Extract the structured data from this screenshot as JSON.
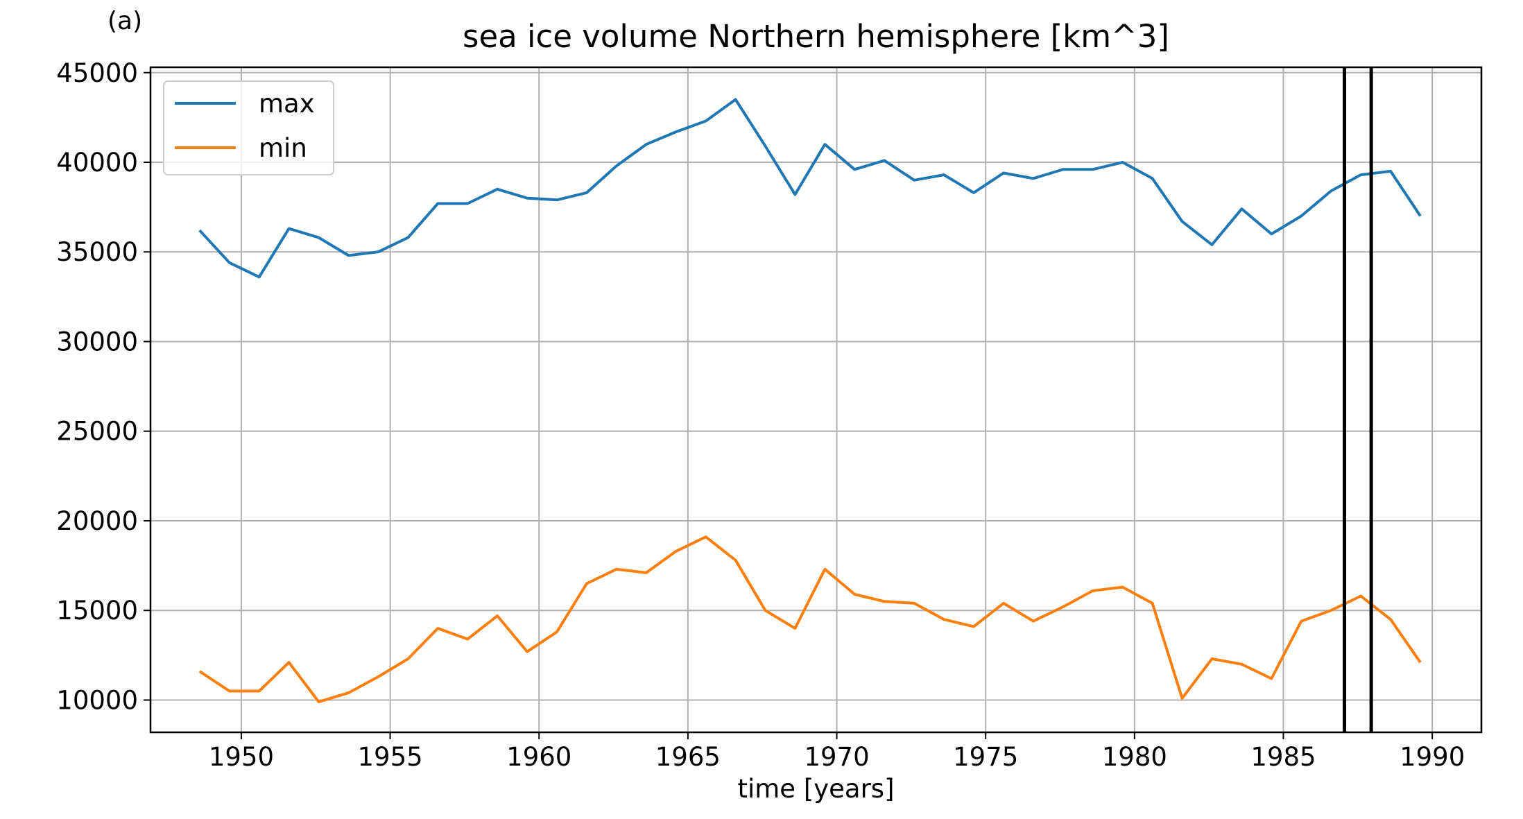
{
  "panel_label": "(a)",
  "chart_data": {
    "type": "line",
    "title": "sea ice volume Northern hemisphere [km^3]",
    "xlabel": "time [years]",
    "ylabel": "",
    "xlim": [
      1946.95,
      1991.65
    ],
    "ylim": [
      8200,
      45300
    ],
    "xticks": [
      1950,
      1955,
      1960,
      1965,
      1970,
      1975,
      1980,
      1985,
      1990
    ],
    "yticks": [
      10000,
      15000,
      20000,
      25000,
      30000,
      35000,
      40000,
      45000
    ],
    "grid": true,
    "legend_position": "top-left",
    "x": [
      1948.6,
      1949.6,
      1950.6,
      1951.6,
      1952.6,
      1953.6,
      1954.6,
      1955.6,
      1956.6,
      1957.6,
      1958.6,
      1959.6,
      1960.6,
      1961.6,
      1962.6,
      1963.6,
      1964.6,
      1965.6,
      1966.6,
      1967.6,
      1968.6,
      1969.6,
      1970.6,
      1971.6,
      1972.6,
      1973.6,
      1974.6,
      1975.6,
      1976.6,
      1977.6,
      1978.6,
      1979.6,
      1980.6,
      1981.6,
      1982.6,
      1983.6,
      1984.6,
      1985.6,
      1986.6,
      1987.6,
      1988.6,
      1989.6
    ],
    "series": [
      {
        "name": "max",
        "color": "#1f77b4",
        "values": [
          36200,
          34400,
          33600,
          36300,
          35800,
          34800,
          35000,
          35800,
          37700,
          37700,
          38500,
          38000,
          37900,
          38300,
          39800,
          41000,
          41700,
          42300,
          43500,
          40900,
          38200,
          41000,
          39600,
          40100,
          39000,
          39300,
          38300,
          39400,
          39100,
          39600,
          39600,
          40000,
          39100,
          36700,
          35400,
          37400,
          36000,
          37000,
          38400,
          39300,
          39500,
          37000
        ]
      },
      {
        "name": "min",
        "color": "#ff7f0e",
        "values": [
          11600,
          10500,
          10500,
          12100,
          9900,
          10400,
          11300,
          12300,
          14000,
          13400,
          14700,
          12700,
          13800,
          16500,
          17300,
          17100,
          18300,
          19100,
          17800,
          15000,
          14000,
          17300,
          15900,
          15500,
          15400,
          14500,
          14100,
          15400,
          14400,
          15200,
          16100,
          16300,
          15400,
          10100,
          12300,
          12000,
          11200,
          14400,
          15000,
          15800,
          14500,
          12100
        ]
      }
    ],
    "vertical_lines": [
      1987.05,
      1987.95
    ],
    "vertical_line_color": "#000000"
  }
}
